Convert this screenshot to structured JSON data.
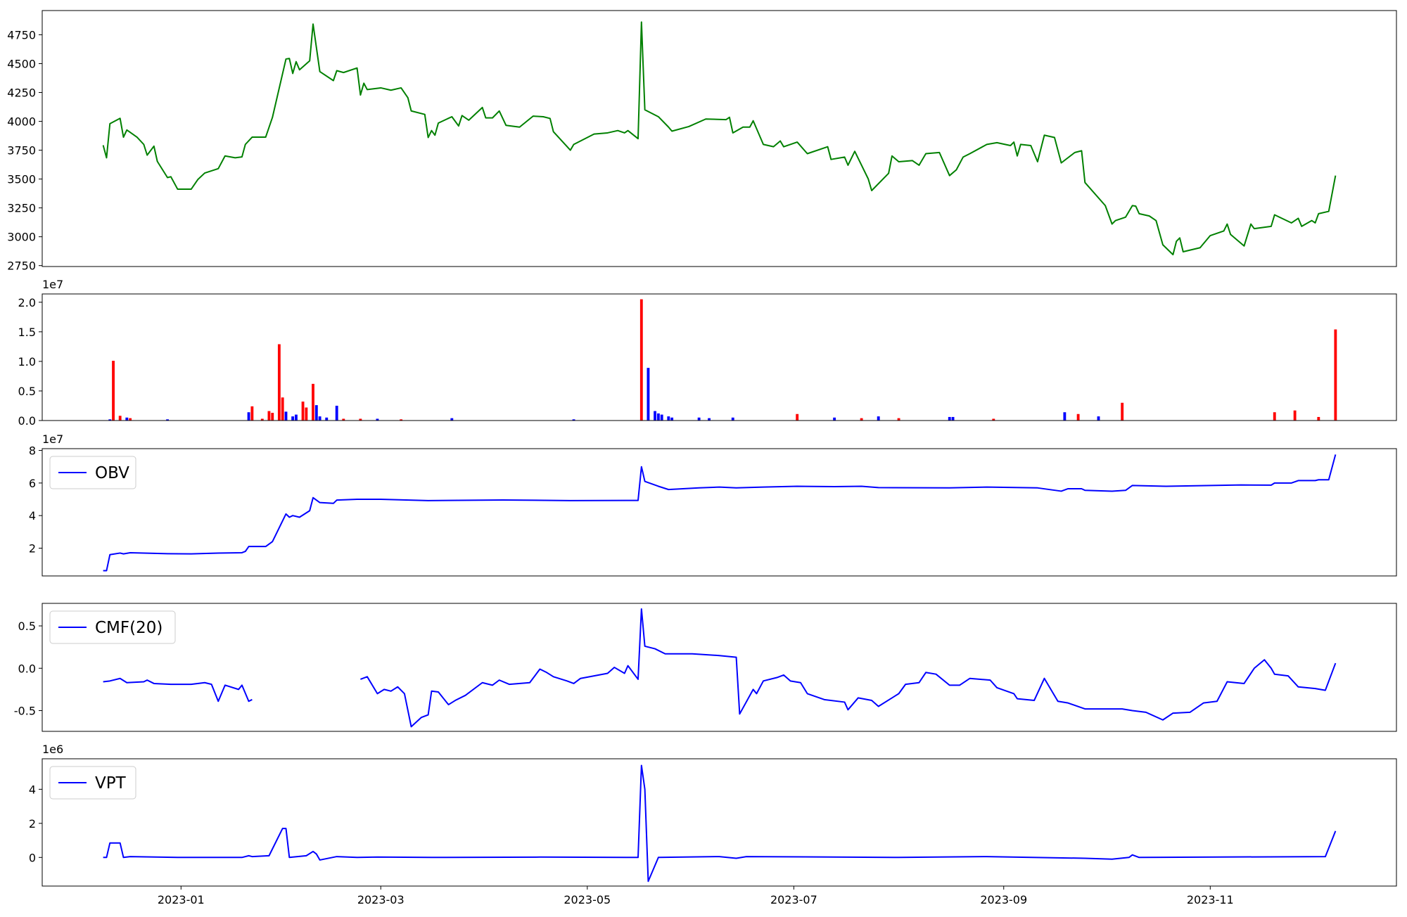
{
  "chart_data": [
    {
      "type": "line",
      "xlim": [
        19317,
        19717
      ],
      "ylim": [
        2742,
        4960
      ],
      "yticks": [
        2750,
        3000,
        3250,
        3500,
        3750,
        4000,
        4250,
        4500,
        4750
      ],
      "x": [
        19335,
        19336,
        19337,
        19340,
        19341,
        19342,
        19345,
        19347,
        19348,
        19350,
        19351,
        19354,
        19355,
        19357,
        19361,
        19363,
        19365,
        19369,
        19371,
        19374,
        19376,
        19377,
        19379,
        19383,
        19385,
        19389,
        19390,
        19391,
        19392,
        19393,
        19396,
        19397,
        19399,
        19403,
        19404,
        19406,
        19410,
        19411,
        19412,
        19413,
        19417,
        19420,
        19423,
        19425,
        19426,
        19430,
        19431,
        19432,
        19433,
        19434,
        19438,
        19440,
        19441,
        19443,
        19447,
        19448,
        19450,
        19452,
        19454,
        19458,
        19462,
        19465,
        19467,
        19468,
        19473,
        19474,
        19480,
        19484,
        19487,
        19489,
        19490,
        19493,
        19494,
        19495,
        19499,
        19502,
        19503,
        19508,
        19513,
        19519,
        19520,
        19521,
        19524,
        19526,
        19527,
        19530,
        19533,
        19535,
        19536,
        19540,
        19543,
        19549,
        19550,
        19554,
        19555,
        19557,
        19561,
        19562,
        19567,
        19568,
        19570,
        19574,
        19576,
        19578,
        19582,
        19585,
        19587,
        19589,
        19591,
        19596,
        19599,
        19603,
        19604,
        19605,
        19606,
        19609,
        19611,
        19613,
        19616,
        19618,
        19622,
        19624,
        19625,
        19631,
        19633,
        19634,
        19637,
        19639,
        19640,
        19641,
        19644,
        19646,
        19648,
        19651,
        19652,
        19653,
        19654,
        19659,
        19662,
        19666,
        19667,
        19668,
        19672,
        19674,
        19675,
        19680,
        19681,
        19686,
        19688,
        19689,
        19692,
        19693,
        19694,
        19697,
        19699
      ],
      "series": [
        {
          "color": "#008000",
          "values": [
            3793,
            3684,
            3980,
            4026,
            3863,
            3925,
            3863,
            3800,
            3707,
            3785,
            3653,
            3513,
            3520,
            3412,
            3412,
            3497,
            3552,
            3590,
            3700,
            3684,
            3692,
            3800,
            3863,
            3863,
            4034,
            4540,
            4545,
            4415,
            4517,
            4447,
            4524,
            4843,
            4431,
            4353,
            4439,
            4423,
            4462,
            4228,
            4330,
            4275,
            4290,
            4270,
            4290,
            4205,
            4090,
            4060,
            3860,
            3920,
            3880,
            3985,
            4040,
            3960,
            4050,
            4010,
            4120,
            4030,
            4030,
            4090,
            3965,
            3950,
            4045,
            4040,
            4025,
            3910,
            3750,
            3800,
            3890,
            3900,
            3920,
            3900,
            3920,
            3850,
            4860,
            4100,
            4040,
            3950,
            3915,
            3955,
            4020,
            4015,
            4035,
            3900,
            3950,
            3950,
            4005,
            3800,
            3780,
            3830,
            3780,
            3820,
            3720,
            3780,
            3670,
            3690,
            3620,
            3740,
            3500,
            3400,
            3550,
            3700,
            3650,
            3660,
            3620,
            3720,
            3730,
            3530,
            3580,
            3690,
            3720,
            3800,
            3815,
            3790,
            3820,
            3700,
            3800,
            3790,
            3650,
            3880,
            3860,
            3640,
            3730,
            3745,
            3470,
            3270,
            3110,
            3140,
            3170,
            3270,
            3265,
            3200,
            3180,
            3140,
            2930,
            2845,
            2960,
            2990,
            2870,
            2905,
            3010,
            3050,
            3110,
            3020,
            2920,
            3110,
            3070,
            3090,
            3190,
            3120,
            3160,
            3090,
            3140,
            3120,
            3200,
            3220,
            3530
          ]
        }
      ]
    },
    {
      "type": "bar",
      "xlim": [
        19317,
        19717
      ],
      "ylim": [
        0,
        21400000
      ],
      "y_offset": "1e7",
      "yticks": [
        {
          "value": 0,
          "label": "0.0"
        },
        {
          "value": 5000000,
          "label": "0.5"
        },
        {
          "value": 10000000,
          "label": "1.0"
        },
        {
          "value": 15000000,
          "label": "1.5"
        },
        {
          "value": 20000000,
          "label": "2.0"
        }
      ],
      "x": [
        19337,
        19338,
        19340,
        19342,
        19343,
        19354,
        19378,
        19379,
        19382,
        19384,
        19385,
        19387,
        19388,
        19389,
        19391,
        19392,
        19394,
        19395,
        19397,
        19398,
        19399,
        19401,
        19404,
        19406,
        19411,
        19416,
        19423,
        19438,
        19474,
        19494,
        19496,
        19498,
        19499,
        19500,
        19502,
        19503,
        19511,
        19514,
        19521,
        19540,
        19551,
        19559,
        19564,
        19570,
        19585,
        19586,
        19598,
        19619,
        19623,
        19629,
        19636,
        19681,
        19687,
        19694,
        19699
      ],
      "values": [
        200000,
        10100000,
        800000,
        500000,
        400000,
        200000,
        1400000,
        2400000,
        300000,
        1600000,
        1300000,
        12900000,
        3900000,
        1500000,
        700000,
        1000000,
        3200000,
        2200000,
        6200000,
        2600000,
        700000,
        500000,
        2500000,
        300000,
        300000,
        300000,
        200000,
        400000,
        200000,
        20500000,
        8900000,
        1600000,
        1200000,
        1000000,
        700000,
        500000,
        500000,
        400000,
        500000,
        1100000,
        500000,
        400000,
        700000,
        400000,
        600000,
        600000,
        300000,
        1400000,
        1100000,
        700000,
        3000000,
        1400000,
        1700000,
        600000,
        15400000
      ],
      "colors": [
        "blue",
        "red",
        "red",
        "blue",
        "red",
        "blue",
        "blue",
        "red",
        "red",
        "red",
        "red",
        "red",
        "red",
        "blue",
        "blue",
        "blue",
        "red",
        "red",
        "red",
        "blue",
        "blue",
        "blue",
        "blue",
        "red",
        "red",
        "blue",
        "red",
        "blue",
        "blue",
        "red",
        "blue",
        "blue",
        "blue",
        "blue",
        "blue",
        "blue",
        "blue",
        "blue",
        "blue",
        "red",
        "blue",
        "red",
        "blue",
        "red",
        "blue",
        "blue",
        "red",
        "blue",
        "red",
        "blue",
        "red",
        "red",
        "red",
        "red",
        "red"
      ]
    },
    {
      "type": "line",
      "xlim": [
        19317,
        19717
      ],
      "ylim": [
        2940000,
        81100000
      ],
      "y_offset": "1e7",
      "legend": "upper left",
      "yticks": [
        {
          "value": 20000000,
          "label": "2"
        },
        {
          "value": 40000000,
          "label": "4"
        },
        {
          "value": 60000000,
          "label": "6"
        },
        {
          "value": 80000000,
          "label": "8"
        }
      ],
      "x": [
        19335,
        19336,
        19337,
        19340,
        19341,
        19343,
        19354,
        19361,
        19369,
        19376,
        19377,
        19378,
        19383,
        19385,
        19389,
        19390,
        19391,
        19393,
        19396,
        19397,
        19399,
        19403,
        19404,
        19410,
        19417,
        19431,
        19453,
        19473,
        19493,
        19494,
        19495,
        19499,
        19502,
        19511,
        19517,
        19522,
        19530,
        19540,
        19551,
        19559,
        19564,
        19585,
        19596,
        19611,
        19618,
        19620,
        19624,
        19625,
        19633,
        19637,
        19639,
        19649,
        19671,
        19680,
        19681,
        19686,
        19688,
        19693,
        19694,
        19697,
        19699
      ],
      "series": [
        {
          "name": "OBV",
          "color": "blue",
          "values": [
            6200000,
            6200000,
            16000000,
            17000000,
            16500000,
            17200000,
            16600000,
            16500000,
            17000000,
            17200000,
            18000000,
            21000000,
            21000000,
            24000000,
            41000000,
            39000000,
            40000000,
            39000000,
            43000000,
            51000000,
            48000000,
            47500000,
            49500000,
            50000000,
            50000000,
            49200000,
            49600000,
            49200000,
            49300000,
            70000000,
            61000000,
            58000000,
            56000000,
            57000000,
            57500000,
            57000000,
            57500000,
            58000000,
            57800000,
            58000000,
            57200000,
            57000000,
            57500000,
            57000000,
            55000000,
            56500000,
            56500000,
            55500000,
            55000000,
            55500000,
            58500000,
            58000000,
            58800000,
            58700000,
            60000000,
            60000000,
            61500000,
            61500000,
            62000000,
            62000000,
            77500000
          ]
        }
      ]
    },
    {
      "type": "line",
      "xlim": [
        19317,
        19717
      ],
      "ylim": [
        -0.745,
        0.766
      ],
      "legend": "upper left",
      "yticks": [
        -0.5,
        {
          "value": 0,
          "label": "0.0"
        },
        0.5
      ],
      "x": [
        19335,
        19337,
        19340,
        19342,
        19347,
        19348,
        19350,
        19355,
        19361,
        19365,
        19367,
        19369,
        19371,
        19375,
        19376,
        19378,
        19379,
        19395,
        19411,
        19413,
        19416,
        19418,
        19420,
        19422,
        19424,
        19426,
        19429,
        19431,
        19432,
        19434,
        19437,
        19439,
        19442,
        19447,
        19450,
        19452,
        19455,
        19461,
        19464,
        19466,
        19468,
        19472,
        19474,
        19476,
        19484,
        19486,
        19489,
        19490,
        19493,
        19494,
        19495,
        19498,
        19501,
        19509,
        19517,
        19522,
        19523,
        19527,
        19528,
        19530,
        19534,
        19536,
        19538,
        19541,
        19543,
        19548,
        19554,
        19555,
        19558,
        19562,
        19564,
        19570,
        19572,
        19576,
        19578,
        19581,
        19585,
        19588,
        19591,
        19597,
        19599,
        19604,
        19605,
        19610,
        19613,
        19617,
        19620,
        19625,
        19636,
        19639,
        19643,
        19648,
        19651,
        19656,
        19660,
        19664,
        19667,
        19672,
        19675,
        19678,
        19680,
        19681,
        19685,
        19688,
        19693,
        19696,
        19699
      ],
      "series": [
        {
          "name": "CMF(20)",
          "color": "blue",
          "values": [
            -0.16,
            -0.15,
            -0.12,
            -0.17,
            -0.16,
            -0.14,
            -0.18,
            -0.19,
            -0.19,
            -0.17,
            -0.19,
            -0.39,
            -0.2,
            -0.25,
            -0.2,
            -0.39,
            -0.37,
            null,
            -0.13,
            -0.1,
            -0.3,
            -0.25,
            -0.27,
            -0.22,
            -0.3,
            -0.69,
            -0.58,
            -0.55,
            -0.27,
            -0.28,
            -0.43,
            -0.38,
            -0.32,
            -0.17,
            -0.2,
            -0.14,
            -0.19,
            -0.17,
            -0.01,
            -0.05,
            -0.1,
            -0.15,
            -0.18,
            -0.12,
            -0.06,
            0.01,
            -0.06,
            0.03,
            -0.13,
            0.7,
            0.26,
            0.23,
            0.17,
            0.17,
            0.15,
            0.13,
            -0.54,
            -0.25,
            -0.3,
            -0.15,
            -0.11,
            -0.08,
            -0.15,
            -0.17,
            -0.3,
            -0.37,
            -0.4,
            -0.49,
            -0.35,
            -0.38,
            -0.45,
            -0.3,
            -0.19,
            -0.17,
            -0.05,
            -0.07,
            -0.2,
            -0.2,
            -0.12,
            -0.14,
            -0.23,
            -0.3,
            -0.36,
            -0.38,
            -0.12,
            -0.39,
            -0.41,
            -0.48,
            -0.48,
            -0.5,
            -0.52,
            -0.61,
            -0.53,
            -0.52,
            -0.41,
            -0.39,
            -0.16,
            -0.18,
            0.0,
            0.1,
            0.0,
            -0.07,
            -0.09,
            -0.22,
            -0.24,
            -0.26,
            0.06
          ]
        }
      ]
    },
    {
      "type": "line",
      "xlim": [
        19317,
        19717
      ],
      "ylim": [
        -1680000,
        5790000
      ],
      "y_offset": "1e6",
      "legend": "upper left",
      "yticks": [
        {
          "value": 0,
          "label": "0"
        },
        {
          "value": 2000000,
          "label": "2"
        },
        {
          "value": 4000000,
          "label": "4"
        }
      ],
      "xticks": [
        {
          "value": 19358,
          "label": "2023-01"
        },
        {
          "value": 19417,
          "label": "2023-03"
        },
        {
          "value": 19478,
          "label": "2023-05"
        },
        {
          "value": 19539,
          "label": "2023-07"
        },
        {
          "value": 19601,
          "label": "2023-09"
        },
        {
          "value": 19662,
          "label": "2023-11"
        }
      ],
      "x": [
        19335,
        19336,
        19337,
        19340,
        19341,
        19343,
        19357,
        19376,
        19378,
        19379,
        19384,
        19388,
        19389,
        19390,
        19395,
        19397,
        19398,
        19399,
        19404,
        19410,
        19416,
        19432,
        19464,
        19493,
        19494,
        19495,
        19496,
        19499,
        19517,
        19522,
        19525,
        19570,
        19596,
        19625,
        19633,
        19638,
        19639,
        19641,
        19696,
        19699
      ],
      "series": [
        {
          "name": "VPT",
          "color": "blue",
          "values": [
            0,
            0,
            850000,
            850000,
            0,
            50000,
            0,
            0,
            100000,
            50000,
            100000,
            1700000,
            1700000,
            0,
            100000,
            350000,
            200000,
            -150000,
            50000,
            0,
            20000,
            0,
            20000,
            0,
            5400000,
            4000000,
            -1400000,
            0,
            50000,
            -50000,
            50000,
            0,
            50000,
            -50000,
            -100000,
            0,
            150000,
            0,
            50000,
            1550000
          ]
        }
      ]
    }
  ]
}
